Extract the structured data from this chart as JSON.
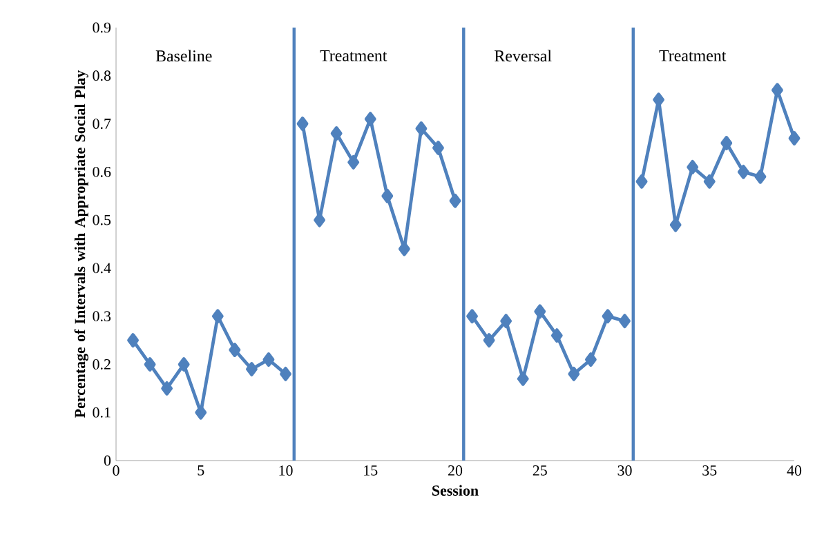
{
  "chart_data": {
    "type": "line",
    "xlabel": "Session",
    "ylabel": "Percentage of Intervals with Appropriate Social Play",
    "xlim": [
      0,
      40
    ],
    "xticks": [
      0,
      5,
      10,
      15,
      20,
      25,
      30,
      35,
      40
    ],
    "ylim": [
      0,
      0.9
    ],
    "yticks": [
      0,
      0.1,
      0.2,
      0.3,
      0.4,
      0.5,
      0.6,
      0.7,
      0.8,
      0.9
    ],
    "marker": "diamond",
    "line_style": "solid",
    "series": [
      {
        "color": "#4f81bd",
        "x": [
          1,
          2,
          3,
          4,
          5,
          6,
          7,
          8,
          9,
          10
        ],
        "values": [
          0.25,
          0.2,
          0.15,
          0.2,
          0.1,
          0.3,
          0.23,
          0.19,
          0.21,
          0.18
        ]
      },
      {
        "color": "#4f81bd",
        "x": [
          11,
          12,
          13,
          14,
          15,
          16,
          17,
          18,
          19,
          20
        ],
        "values": [
          0.7,
          0.5,
          0.68,
          0.62,
          0.71,
          0.55,
          0.44,
          0.69,
          0.65,
          0.54
        ]
      },
      {
        "color": "#4f81bd",
        "x": [
          21,
          22,
          23,
          24,
          25,
          26,
          27,
          28,
          29,
          30
        ],
        "values": [
          0.3,
          0.25,
          0.29,
          0.17,
          0.31,
          0.26,
          0.18,
          0.21,
          0.3,
          0.29
        ]
      },
      {
        "color": "#4f81bd",
        "x": [
          31,
          32,
          33,
          34,
          35,
          36,
          37,
          38,
          39,
          40
        ],
        "values": [
          0.58,
          0.75,
          0.49,
          0.61,
          0.58,
          0.66,
          0.6,
          0.59,
          0.77,
          0.67
        ]
      }
    ],
    "ref_lines": [
      {
        "axis": "x",
        "value": 10.5,
        "color": "#4f81bd"
      },
      {
        "axis": "x",
        "value": 20.5,
        "color": "#4f81bd"
      },
      {
        "axis": "x",
        "value": 30.5,
        "color": "#4f81bd"
      }
    ],
    "annotations": [
      "Baseline",
      "Treatment",
      "Reversal",
      "Treatment"
    ]
  }
}
